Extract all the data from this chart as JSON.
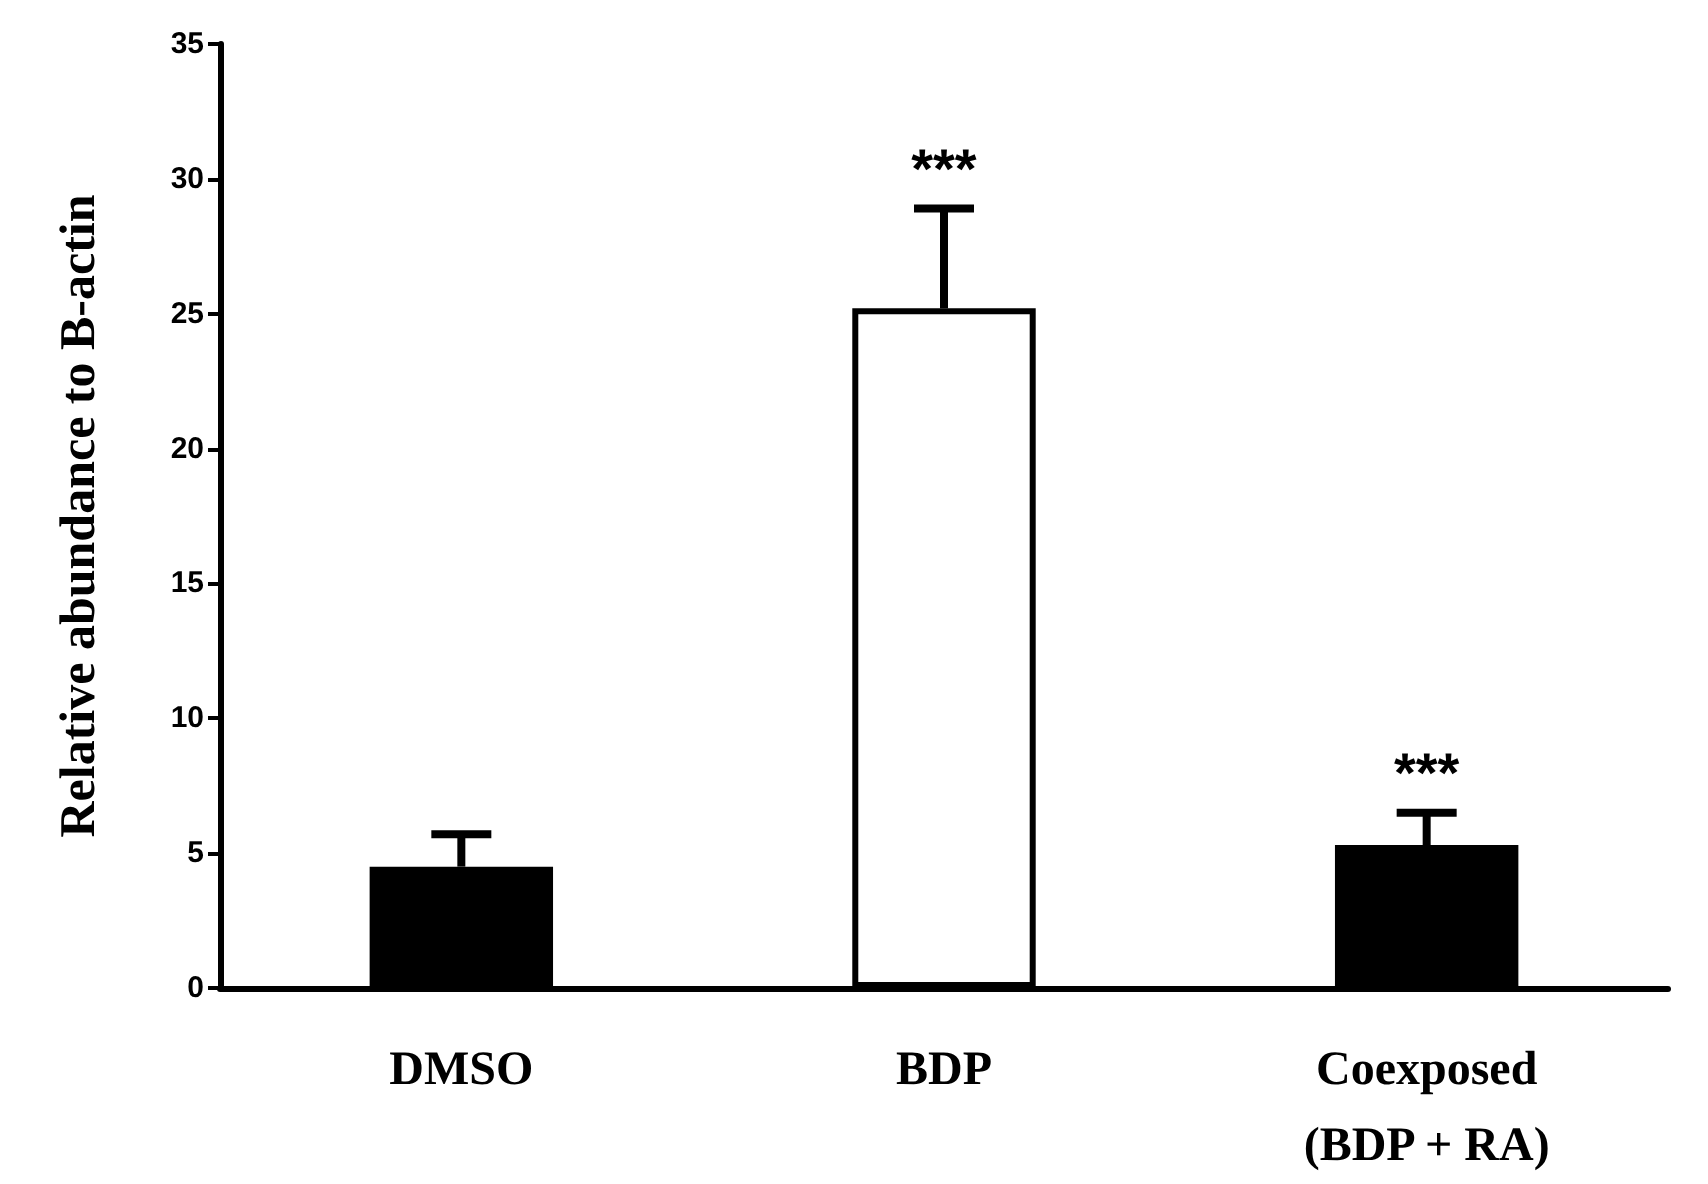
{
  "chart_data": {
    "type": "bar",
    "ylabel": "Relative abundance to B-actin",
    "categories": [
      "DMSO",
      "BDP",
      "Coexposed\n(BDP + RA)"
    ],
    "values": [
      4.5,
      25.2,
      5.3
    ],
    "colors": [
      "#000000",
      "#ffffff",
      "#000000"
    ],
    "errors": [
      [
        4.5,
        5.7
      ],
      [
        25.2,
        28.9
      ],
      [
        5.3,
        6.5
      ]
    ],
    "ylim": [
      0,
      35
    ],
    "yticks": [
      0,
      5,
      10,
      15,
      20,
      25,
      30,
      35
    ],
    "grid": false,
    "annotations": [
      {
        "text": "***",
        "x": "BDP",
        "y": 28.9
      },
      {
        "text": "***",
        "x": "Coexposed\n(BDP + RA)",
        "y": 6.5
      }
    ]
  }
}
